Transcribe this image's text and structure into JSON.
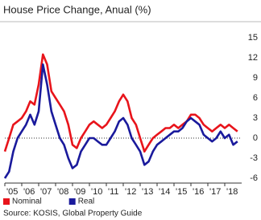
{
  "chart_data": {
    "type": "line",
    "title": "House Price Change, Anual (%)",
    "source": "Source: KOSIS, Global Property Guide",
    "categories": [
      "'05",
      null,
      null,
      null,
      "'06",
      null,
      null,
      null,
      "'07",
      null,
      null,
      null,
      "'08",
      null,
      null,
      null,
      "'09",
      null,
      null,
      null,
      "'10",
      null,
      null,
      null,
      "'11",
      null,
      null,
      null,
      "'12",
      null,
      null,
      null,
      "'13",
      null,
      null,
      null,
      "'14",
      null,
      null,
      null,
      "'15",
      null,
      null,
      null,
      "'16",
      null,
      null,
      null,
      "'17",
      null,
      null,
      null,
      "'18",
      null,
      null,
      null
    ],
    "series": [
      {
        "name": "Nominal",
        "color": "#e8141b",
        "values": [
          -2,
          0,
          2,
          2.5,
          3,
          4,
          5.5,
          5,
          8,
          12.5,
          11,
          7,
          6,
          5,
          4,
          2,
          -1,
          -1.5,
          0,
          1,
          2,
          2.5,
          2,
          1.5,
          2,
          3,
          4,
          5.5,
          6.5,
          5.5,
          3,
          2,
          0,
          -2,
          -1,
          0,
          0.5,
          1,
          1.5,
          1.5,
          2,
          1.5,
          2,
          2.5,
          3.5,
          3.5,
          3,
          2,
          1.5,
          1,
          1.5,
          2,
          1.5,
          2,
          1.5,
          1
        ]
      },
      {
        "name": "Real",
        "color": "#1a1a9c",
        "values": [
          -6,
          -5,
          -2,
          0,
          1,
          2,
          3.5,
          2,
          4,
          11,
          8,
          4,
          2,
          0,
          -1,
          -3,
          -4.5,
          -4,
          -2,
          -1,
          0,
          0,
          -0.5,
          -1,
          -1,
          0,
          1,
          2.5,
          3,
          2,
          0,
          -1,
          -2,
          -4,
          -3.5,
          -2,
          -1,
          -0.5,
          0,
          0.5,
          1,
          1,
          1.5,
          2.5,
          3,
          2.5,
          2,
          0.5,
          0,
          -0.5,
          0,
          1,
          0,
          0.5,
          -1,
          -0.5
        ]
      }
    ],
    "ylim": [
      -6,
      15
    ],
    "yticks": [
      -6,
      -3,
      0,
      3,
      6,
      9,
      12,
      15
    ],
    "zero_line": true
  }
}
